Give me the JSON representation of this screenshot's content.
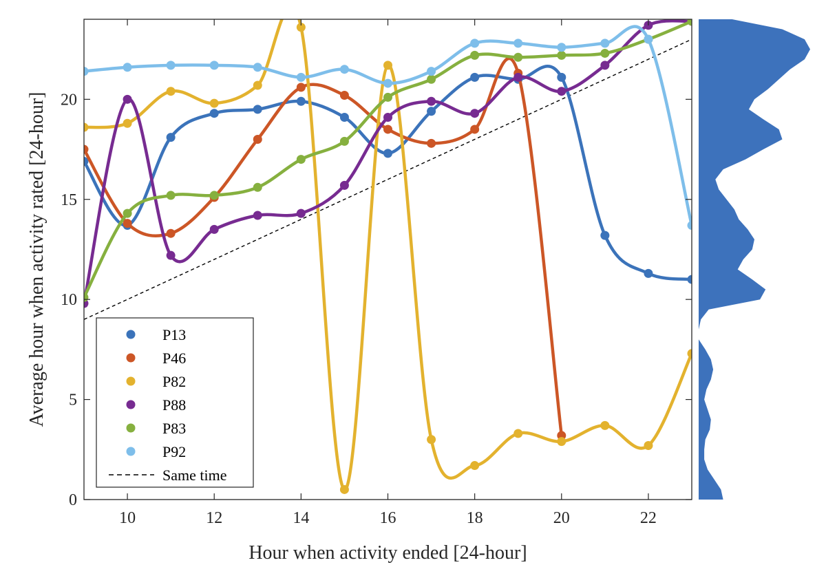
{
  "chart_data": {
    "type": "line",
    "xlabel": "Hour when activity ended [24-hour]",
    "ylabel": "Average hour when activity rated [24-hour]",
    "xlim": [
      9,
      23
    ],
    "ylim": [
      0,
      24
    ],
    "x_ticks": [
      10,
      12,
      14,
      16,
      18,
      20,
      22
    ],
    "y_ticks": [
      0,
      5,
      10,
      15,
      20
    ],
    "grid": false,
    "legend_position": "bottom-left",
    "series": [
      {
        "name": "P13",
        "color": "#3B73BA",
        "x": [
          9,
          10,
          11,
          12,
          13,
          14,
          15,
          16,
          17,
          18,
          19,
          20,
          21,
          22,
          23
        ],
        "y": [
          16.9,
          13.7,
          18.1,
          19.3,
          19.5,
          19.9,
          19.1,
          17.3,
          19.4,
          21.1,
          21.0,
          21.1,
          13.2,
          11.3,
          11.0
        ]
      },
      {
        "name": "P46",
        "color": "#CC5626",
        "x": [
          9,
          10,
          11,
          12,
          13,
          14,
          15,
          16,
          17,
          18,
          19,
          20
        ],
        "y": [
          17.5,
          13.8,
          13.3,
          15.1,
          18.0,
          20.6,
          20.2,
          18.5,
          17.8,
          18.5,
          21.3,
          3.2
        ]
      },
      {
        "name": "P82",
        "color": "#E3B22E",
        "x": [
          9,
          10,
          11,
          12,
          13,
          14,
          15,
          16,
          17,
          18,
          19,
          20,
          21,
          22,
          23
        ],
        "y": [
          18.6,
          18.8,
          20.4,
          19.8,
          20.7,
          23.6,
          0.5,
          21.7,
          3.0,
          1.7,
          3.3,
          2.9,
          3.7,
          2.7,
          7.3
        ]
      },
      {
        "name": "P88",
        "color": "#772B91",
        "x": [
          9,
          10,
          11,
          12,
          13,
          14,
          15,
          16,
          17,
          18,
          19,
          20,
          21,
          22,
          23
        ],
        "y": [
          9.8,
          20.0,
          12.2,
          13.5,
          14.2,
          14.3,
          15.7,
          19.1,
          19.9,
          19.3,
          21.1,
          20.4,
          21.7,
          23.7,
          23.9
        ]
      },
      {
        "name": "P83",
        "color": "#86B03F",
        "x": [
          9,
          10,
          11,
          12,
          13,
          14,
          15,
          16,
          17,
          18,
          19,
          20,
          21,
          22,
          23
        ],
        "y": [
          10.1,
          14.3,
          15.2,
          15.2,
          15.6,
          17.0,
          17.9,
          20.1,
          21.0,
          22.2,
          22.1,
          22.2,
          22.3,
          23.0,
          23.9
        ]
      },
      {
        "name": "P92",
        "color": "#7EBEEA",
        "x": [
          9,
          10,
          11,
          12,
          13,
          14,
          15,
          16,
          17,
          18,
          19,
          20,
          21,
          22,
          23
        ],
        "y": [
          21.4,
          21.6,
          21.7,
          21.7,
          21.6,
          21.1,
          21.5,
          20.8,
          21.4,
          22.8,
          22.8,
          22.6,
          22.8,
          23.0,
          13.7
        ]
      }
    ],
    "reference_line": {
      "name": "Same time",
      "style": "dashed",
      "color": "#000000",
      "x": [
        9,
        23
      ],
      "y": [
        9,
        23
      ]
    },
    "marginal_density": {
      "color": "#3D72BC",
      "y": [
        0,
        0.5,
        1,
        1.5,
        2,
        2.5,
        3,
        3.5,
        4,
        4.5,
        5,
        5.5,
        6,
        6.5,
        7,
        7.5,
        8,
        8.5,
        9,
        9.5,
        10,
        10.5,
        11,
        11.5,
        12,
        12.5,
        13,
        13.5,
        14,
        14.5,
        15,
        15.5,
        16,
        16.5,
        17,
        17.5,
        18,
        18.5,
        19,
        19.5,
        20,
        20.5,
        21,
        21.5,
        22,
        22.5,
        23,
        23.5,
        24
      ],
      "density": [
        0.22,
        0.2,
        0.14,
        0.08,
        0.05,
        0.05,
        0.06,
        0.1,
        0.11,
        0.08,
        0.05,
        0.07,
        0.11,
        0.13,
        0.11,
        0.06,
        0.0,
        0.0,
        0.02,
        0.09,
        0.55,
        0.6,
        0.48,
        0.35,
        0.4,
        0.48,
        0.5,
        0.44,
        0.36,
        0.32,
        0.25,
        0.18,
        0.15,
        0.22,
        0.42,
        0.58,
        0.75,
        0.72,
        0.58,
        0.45,
        0.5,
        0.62,
        0.72,
        0.82,
        0.95,
        1.0,
        0.95,
        0.75,
        0.3
      ]
    }
  },
  "legend": {
    "items": [
      {
        "label": "P13",
        "color": "#3B73BA",
        "kind": "marker"
      },
      {
        "label": "P46",
        "color": "#CC5626",
        "kind": "marker"
      },
      {
        "label": "P82",
        "color": "#E3B22E",
        "kind": "marker"
      },
      {
        "label": "P88",
        "color": "#772B91",
        "kind": "marker"
      },
      {
        "label": "P83",
        "color": "#86B03F",
        "kind": "marker"
      },
      {
        "label": "P92",
        "color": "#7EBEEA",
        "kind": "marker"
      },
      {
        "label": "Same time",
        "color": "#000000",
        "kind": "dashed-line"
      }
    ]
  }
}
